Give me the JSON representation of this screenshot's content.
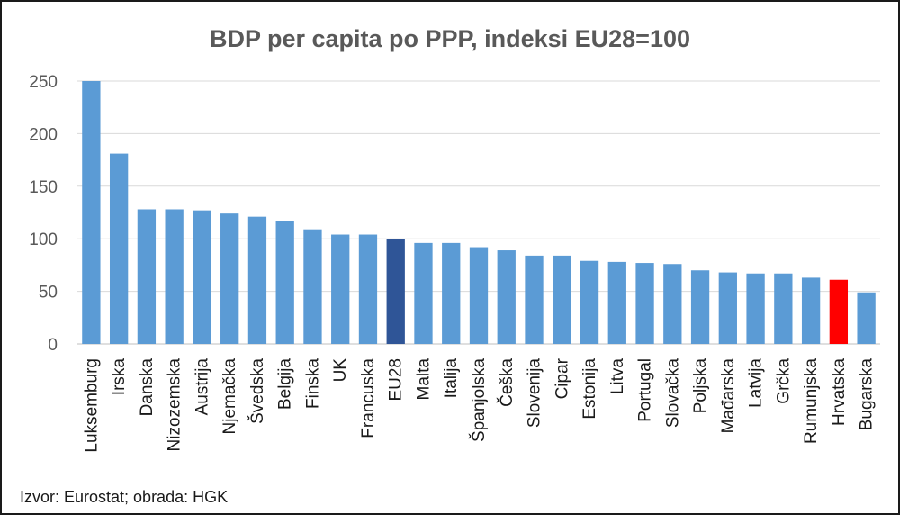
{
  "chart_data": {
    "type": "bar",
    "title": "BDP per capita po PPP, indeksi EU28=100",
    "xlabel": "",
    "ylabel": "",
    "ylim": [
      0,
      250
    ],
    "yticks": [
      0,
      50,
      100,
      150,
      200,
      250
    ],
    "grid": true,
    "categories": [
      "Luksemburg",
      "Irska",
      "Danska",
      "Nizozemska",
      "Austrija",
      "Njemačka",
      "Švedska",
      "Belgija",
      "Finska",
      "UK",
      "Francuska",
      "EU28",
      "Malta",
      "Italija",
      "Španjolska",
      "Češka",
      "Slovenija",
      "Cipar",
      "Estonija",
      "Litva",
      "Portugal",
      "Slovačka",
      "Poljska",
      "Mađarska",
      "Latvija",
      "Grčka",
      "Rumunjska",
      "Hrvatska",
      "Bugarska"
    ],
    "values": [
      267,
      181,
      128,
      128,
      127,
      124,
      121,
      117,
      109,
      104,
      104,
      100,
      96,
      96,
      92,
      89,
      84,
      84,
      79,
      78,
      77,
      76,
      70,
      68,
      67,
      67,
      63,
      61,
      49
    ],
    "colors": {
      "default": "#5b9bd5",
      "EU28": "#2f5597",
      "Hrvatska": "#ff0000"
    },
    "gridline_color": "#d9d9d9"
  },
  "source": "Izvor: Eurostat; obrada: HGK"
}
